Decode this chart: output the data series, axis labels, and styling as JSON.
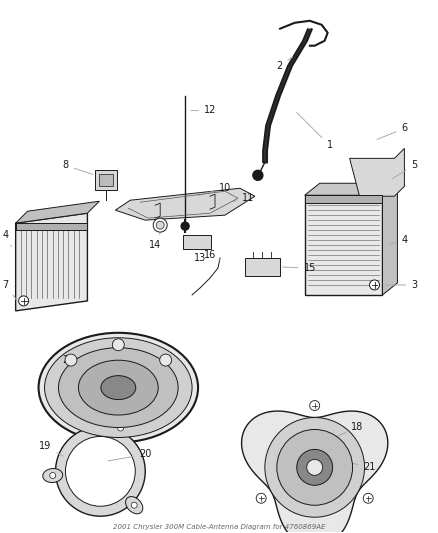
{
  "title": "2001 Chrysler 300M Cable-Antenna Diagram for 4760869AE",
  "bg_color": "#ffffff",
  "fig_width": 4.38,
  "fig_height": 5.33
}
